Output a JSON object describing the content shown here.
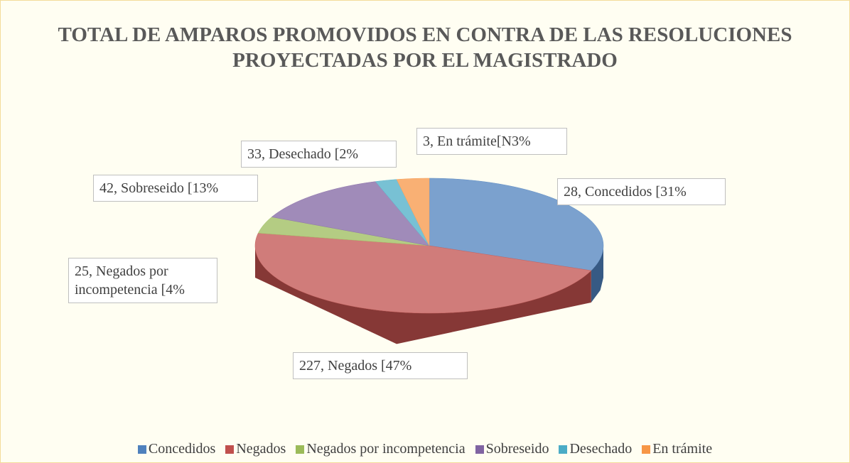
{
  "chart_data": {
    "type": "pie",
    "title": "TOTAL DE AMPAROS PROMOVIDOS EN CONTRA DE LAS RESOLUCIONES PROYECTADAS POR EL MAGISTRADO",
    "categories": [
      "Concedidos",
      "Negados",
      "Negados por incompetencia",
      "Sobreseido",
      "Desechado",
      "En trámite"
    ],
    "values": [
      31,
      47,
      4,
      13,
      2,
      3
    ],
    "value_labels": [
      "28, Concedidos [31%",
      "227, Negados [47%",
      "25, Negados por incompetencia [4%",
      "42, Sobreseido [13%",
      "33, Desechado [2%",
      "3, En trámite[N3%"
    ],
    "colors": [
      "#4f81bd",
      "#c0504d",
      "#9bbb59",
      "#8064a2",
      "#4bacc6",
      "#f79646"
    ],
    "legend": "bottom"
  }
}
